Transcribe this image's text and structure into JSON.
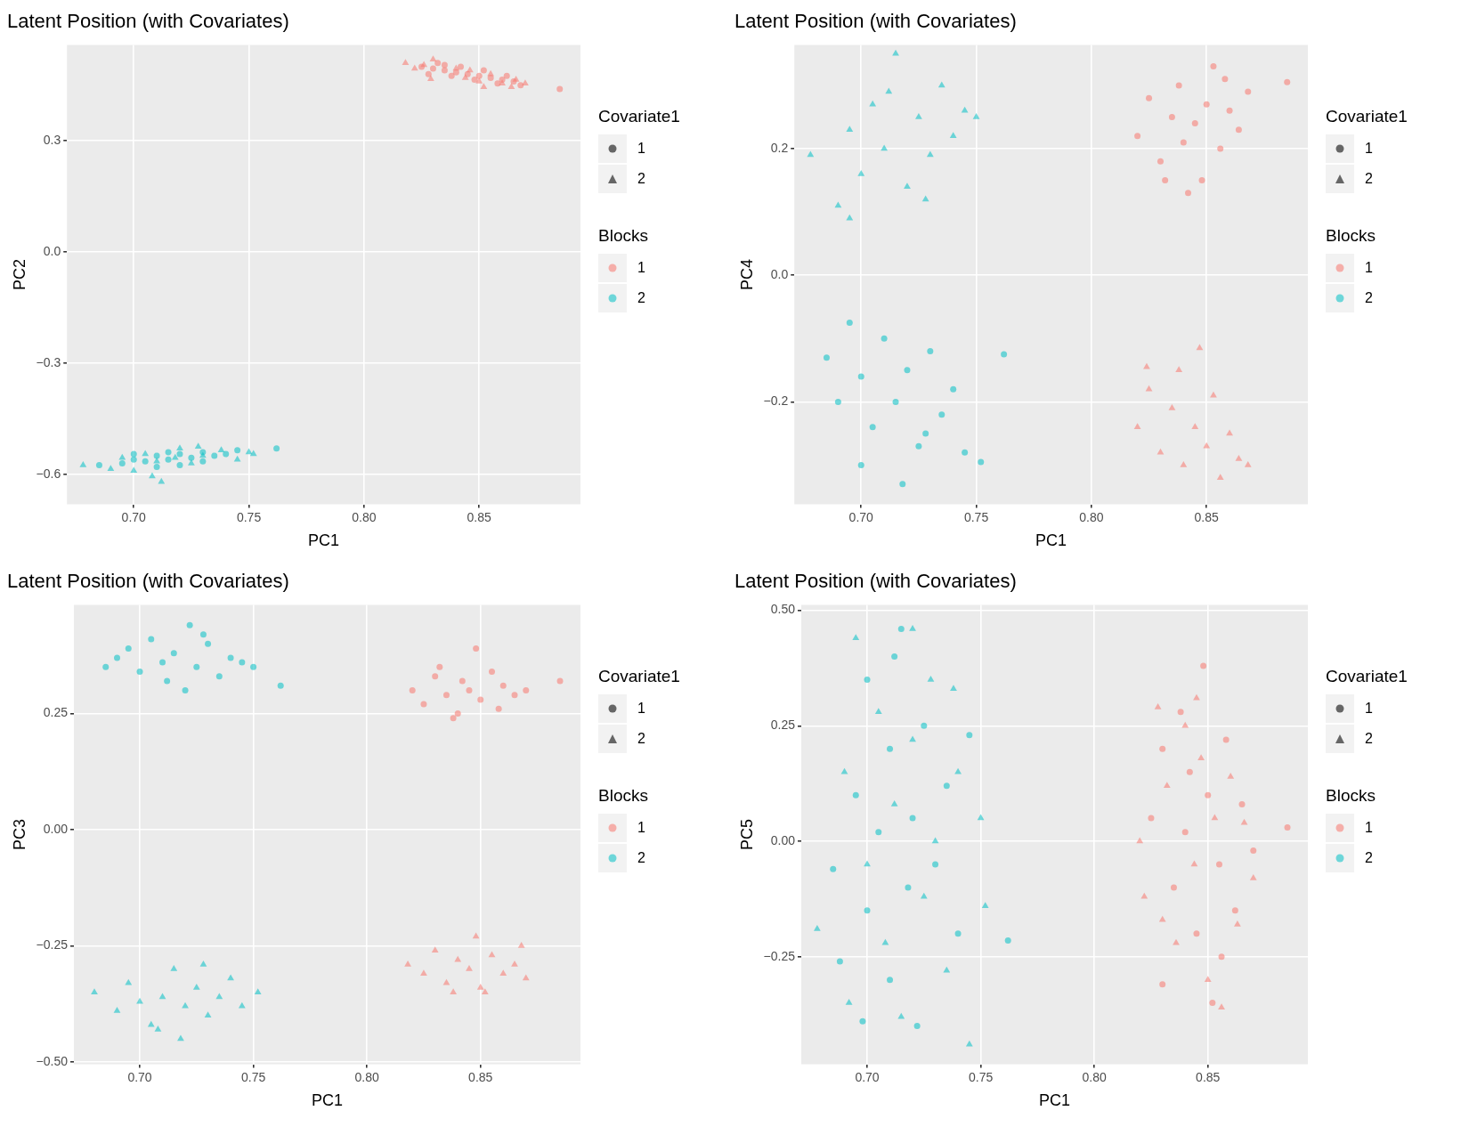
{
  "chart_data": [
    {
      "type": "scatter",
      "title": "Latent Position (with Covariates)",
      "xlabel": "PC1",
      "ylabel": "PC2",
      "xlim": [
        0.671,
        0.894
      ],
      "ylim": [
        -0.681,
        0.559
      ],
      "xticks": [
        {
          "value": 0.7,
          "label": "0.70"
        },
        {
          "value": 0.75,
          "label": "0.75"
        },
        {
          "value": 0.8,
          "label": "0.80"
        },
        {
          "value": 0.85,
          "label": "0.85"
        }
      ],
      "yticks": [
        {
          "value": -0.6,
          "label": "−0.6"
        },
        {
          "value": -0.3,
          "label": "−0.3"
        },
        {
          "value": 0,
          "label": "0.0"
        },
        {
          "value": 0.3,
          "label": "0.3"
        }
      ],
      "grid": true,
      "legend": "right",
      "legend_title": "Blocks",
      "annotations": [
        "Covariate1",
        "1",
        "2"
      ],
      "series": [
        {
          "name": "1",
          "color": "#f8766d",
          "marker": "circle",
          "x": [
            0.825,
            0.83,
            0.835,
            0.84,
            0.845,
            0.85,
            0.855,
            0.86,
            0.865,
            0.885,
            0.832,
            0.838,
            0.842,
            0.848,
            0.852,
            0.858,
            0.862,
            0.828,
            0.868,
            0.835
          ],
          "values": [
            0.5,
            0.495,
            0.49,
            0.485,
            0.48,
            0.475,
            0.47,
            0.465,
            0.46,
            0.44,
            0.51,
            0.475,
            0.5,
            0.465,
            0.49,
            0.455,
            0.475,
            0.48,
            0.45,
            0.505
          ]
        },
        {
          "name": "2",
          "color": "#00bfc4",
          "marker": "circle",
          "x": [
            0.685,
            0.695,
            0.7,
            0.705,
            0.71,
            0.715,
            0.72,
            0.725,
            0.73,
            0.735,
            0.74,
            0.745,
            0.762,
            0.71,
            0.72,
            0.7,
            0.73,
            0.715
          ],
          "values": [
            -0.575,
            -0.57,
            -0.56,
            -0.565,
            -0.55,
            -0.56,
            -0.545,
            -0.555,
            -0.54,
            -0.55,
            -0.545,
            -0.535,
            -0.53,
            -0.58,
            -0.575,
            -0.545,
            -0.565,
            -0.54
          ]
        },
        {
          "color": "#f8766d",
          "marker": "triangle",
          "x": [
            0.818,
            0.822,
            0.83,
            0.829,
            0.84,
            0.846,
            0.85,
            0.855,
            0.86,
            0.866,
            0.87,
            0.844,
            0.826,
            0.852,
            0.864
          ],
          "values": [
            0.51,
            0.495,
            0.52,
            0.467,
            0.495,
            0.49,
            0.46,
            0.48,
            0.455,
            0.465,
            0.455,
            0.47,
            0.505,
            0.445,
            0.445
          ]
        },
        {
          "color": "#00bfc4",
          "marker": "triangle",
          "x": [
            0.678,
            0.69,
            0.695,
            0.7,
            0.705,
            0.71,
            0.712,
            0.718,
            0.72,
            0.725,
            0.73,
            0.738,
            0.745,
            0.75,
            0.752,
            0.708,
            0.728
          ],
          "values": [
            -0.575,
            -0.585,
            -0.555,
            -0.59,
            -0.545,
            -0.565,
            -0.62,
            -0.555,
            -0.53,
            -0.57,
            -0.55,
            -0.535,
            -0.56,
            -0.54,
            -0.545,
            -0.605,
            -0.525
          ]
        }
      ]
    },
    {
      "type": "scatter",
      "title": "Latent Position (with Covariates)",
      "xlabel": "PC1",
      "ylabel": "PC4",
      "xlim": [
        0.671,
        0.894
      ],
      "ylim": [
        -0.362,
        0.364
      ],
      "xticks": [
        {
          "value": 0.7,
          "label": "0.70"
        },
        {
          "value": 0.75,
          "label": "0.75"
        },
        {
          "value": 0.8,
          "label": "0.80"
        },
        {
          "value": 0.85,
          "label": "0.85"
        }
      ],
      "yticks": [
        {
          "value": -0.2,
          "label": "−0.2"
        },
        {
          "value": 0,
          "label": "0.0"
        },
        {
          "value": 0.2,
          "label": "0.2"
        }
      ],
      "grid": true,
      "legend": "right",
      "legend_title": "Blocks",
      "annotations": [
        "Covariate1",
        "1",
        "2"
      ],
      "series": [
        {
          "name": "1",
          "color": "#f8766d",
          "marker": "circle",
          "x": [
            0.82,
            0.825,
            0.83,
            0.835,
            0.838,
            0.84,
            0.845,
            0.848,
            0.85,
            0.853,
            0.856,
            0.86,
            0.864,
            0.868,
            0.842,
            0.885,
            0.832,
            0.858
          ],
          "values": [
            0.22,
            0.28,
            0.18,
            0.25,
            0.3,
            0.21,
            0.24,
            0.15,
            0.27,
            0.33,
            0.2,
            0.26,
            0.23,
            0.29,
            0.13,
            0.305,
            0.15,
            0.31
          ]
        },
        {
          "name": "2",
          "color": "#00bfc4",
          "marker": "circle",
          "x": [
            0.685,
            0.69,
            0.695,
            0.7,
            0.705,
            0.71,
            0.715,
            0.718,
            0.72,
            0.725,
            0.73,
            0.735,
            0.74,
            0.745,
            0.752,
            0.762,
            0.7,
            0.728
          ],
          "values": [
            -0.13,
            -0.2,
            -0.075,
            -0.16,
            -0.24,
            -0.1,
            -0.2,
            -0.33,
            -0.15,
            -0.27,
            -0.12,
            -0.22,
            -0.18,
            -0.28,
            -0.295,
            -0.125,
            -0.3,
            -0.25
          ]
        },
        {
          "color": "#f8766d",
          "marker": "triangle",
          "x": [
            0.82,
            0.825,
            0.83,
            0.835,
            0.84,
            0.845,
            0.847,
            0.85,
            0.853,
            0.856,
            0.86,
            0.864,
            0.868,
            0.838,
            0.824
          ],
          "values": [
            -0.24,
            -0.18,
            -0.28,
            -0.21,
            -0.3,
            -0.24,
            -0.115,
            -0.27,
            -0.19,
            -0.32,
            -0.25,
            -0.29,
            -0.3,
            -0.15,
            -0.145
          ]
        },
        {
          "color": "#00bfc4",
          "marker": "triangle",
          "x": [
            0.678,
            0.69,
            0.695,
            0.7,
            0.705,
            0.71,
            0.715,
            0.72,
            0.725,
            0.73,
            0.735,
            0.74,
            0.745,
            0.75,
            0.695,
            0.728,
            0.712
          ],
          "values": [
            0.19,
            0.11,
            0.23,
            0.16,
            0.27,
            0.2,
            0.35,
            0.14,
            0.25,
            0.19,
            0.3,
            0.22,
            0.26,
            0.25,
            0.09,
            0.12,
            0.29
          ]
        }
      ]
    },
    {
      "type": "scatter",
      "title": "Latent Position (with Covariates)",
      "xlabel": "PC1",
      "ylabel": "PC3",
      "xlim": [
        0.671,
        0.894
      ],
      "ylim": [
        -0.505,
        0.484
      ],
      "xticks": [
        {
          "value": 0.7,
          "label": "0.70"
        },
        {
          "value": 0.75,
          "label": "0.75"
        },
        {
          "value": 0.8,
          "label": "0.80"
        },
        {
          "value": 0.85,
          "label": "0.85"
        }
      ],
      "yticks": [
        {
          "value": -0.5,
          "label": "−0.50"
        },
        {
          "value": -0.25,
          "label": "−0.25"
        },
        {
          "value": 0,
          "label": "0.00"
        },
        {
          "value": 0.25,
          "label": "0.25"
        }
      ],
      "grid": true,
      "legend": "right",
      "legend_title": "Blocks",
      "annotations": [
        "Covariate1",
        "1",
        "2"
      ],
      "series": [
        {
          "name": "1",
          "color": "#f8766d",
          "marker": "circle",
          "x": [
            0.82,
            0.825,
            0.83,
            0.835,
            0.84,
            0.842,
            0.845,
            0.848,
            0.85,
            0.855,
            0.86,
            0.865,
            0.87,
            0.885,
            0.838,
            0.858,
            0.832
          ],
          "values": [
            0.3,
            0.27,
            0.33,
            0.29,
            0.25,
            0.32,
            0.3,
            0.39,
            0.28,
            0.34,
            0.31,
            0.29,
            0.3,
            0.32,
            0.24,
            0.26,
            0.35
          ]
        },
        {
          "name": "2",
          "color": "#00bfc4",
          "marker": "circle",
          "x": [
            0.685,
            0.69,
            0.695,
            0.7,
            0.705,
            0.71,
            0.715,
            0.72,
            0.722,
            0.725,
            0.73,
            0.735,
            0.74,
            0.745,
            0.75,
            0.762,
            0.712,
            0.728
          ],
          "values": [
            0.35,
            0.37,
            0.39,
            0.34,
            0.41,
            0.36,
            0.38,
            0.3,
            0.44,
            0.35,
            0.4,
            0.33,
            0.37,
            0.36,
            0.35,
            0.31,
            0.32,
            0.42
          ]
        },
        {
          "color": "#f8766d",
          "marker": "triangle",
          "x": [
            0.818,
            0.825,
            0.83,
            0.835,
            0.84,
            0.845,
            0.848,
            0.85,
            0.855,
            0.86,
            0.865,
            0.868,
            0.87,
            0.838,
            0.852
          ],
          "values": [
            -0.29,
            -0.31,
            -0.26,
            -0.33,
            -0.28,
            -0.3,
            -0.23,
            -0.34,
            -0.27,
            -0.31,
            -0.29,
            -0.25,
            -0.32,
            -0.35,
            -0.35
          ]
        },
        {
          "color": "#00bfc4",
          "marker": "triangle",
          "x": [
            0.68,
            0.69,
            0.695,
            0.7,
            0.705,
            0.71,
            0.715,
            0.718,
            0.72,
            0.725,
            0.73,
            0.735,
            0.74,
            0.745,
            0.752,
            0.708,
            0.728
          ],
          "values": [
            -0.35,
            -0.39,
            -0.33,
            -0.37,
            -0.42,
            -0.36,
            -0.3,
            -0.45,
            -0.38,
            -0.34,
            -0.4,
            -0.36,
            -0.32,
            -0.38,
            -0.35,
            -0.43,
            -0.29
          ]
        }
      ]
    },
    {
      "type": "scatter",
      "title": "Latent Position (with Covariates)",
      "xlabel": "PC1",
      "ylabel": "PC5",
      "xlim": [
        0.671,
        0.894
      ],
      "ylim": [
        -0.483,
        0.512
      ],
      "xticks": [
        {
          "value": 0.7,
          "label": "0.70"
        },
        {
          "value": 0.75,
          "label": "0.75"
        },
        {
          "value": 0.8,
          "label": "0.80"
        },
        {
          "value": 0.85,
          "label": "0.85"
        }
      ],
      "yticks": [
        {
          "value": -0.25,
          "label": "−0.25"
        },
        {
          "value": 0,
          "label": "0.00"
        },
        {
          "value": 0.25,
          "label": "0.25"
        },
        {
          "value": 0.5,
          "label": "0.50"
        }
      ],
      "grid": true,
      "legend": "right",
      "legend_title": "Blocks",
      "annotations": [
        "Covariate1",
        "1",
        "2"
      ],
      "series": [
        {
          "name": "1",
          "color": "#f8766d",
          "marker": "circle",
          "x": [
            0.825,
            0.83,
            0.83,
            0.835,
            0.838,
            0.84,
            0.845,
            0.848,
            0.85,
            0.852,
            0.855,
            0.858,
            0.862,
            0.865,
            0.87,
            0.885,
            0.842,
            0.856
          ],
          "values": [
            0.05,
            -0.31,
            0.2,
            -0.1,
            0.28,
            0.02,
            -0.2,
            0.38,
            0.1,
            -0.35,
            -0.05,
            0.22,
            -0.15,
            0.08,
            -0.02,
            0.03,
            0.15,
            -0.25
          ]
        },
        {
          "name": "2",
          "color": "#00bfc4",
          "marker": "circle",
          "x": [
            0.685,
            0.688,
            0.695,
            0.7,
            0.7,
            0.705,
            0.71,
            0.71,
            0.715,
            0.718,
            0.72,
            0.722,
            0.725,
            0.73,
            0.735,
            0.74,
            0.745,
            0.762,
            0.712,
            0.698
          ],
          "values": [
            -0.06,
            -0.26,
            0.1,
            -0.15,
            0.35,
            0.02,
            -0.3,
            0.2,
            0.46,
            -0.1,
            0.05,
            -0.4,
            0.25,
            -0.05,
            0.12,
            -0.2,
            0.23,
            -0.215,
            0.4,
            -0.39
          ]
        },
        {
          "color": "#f8766d",
          "marker": "triangle",
          "x": [
            0.82,
            0.822,
            0.828,
            0.832,
            0.836,
            0.84,
            0.844,
            0.847,
            0.85,
            0.853,
            0.856,
            0.86,
            0.863,
            0.866,
            0.87,
            0.845,
            0.83
          ],
          "values": [
            0,
            -0.12,
            0.29,
            0.12,
            -0.22,
            0.25,
            -0.05,
            0.18,
            -0.3,
            0.05,
            -0.36,
            0.14,
            -0.18,
            0.04,
            -0.08,
            0.31,
            -0.17
          ]
        },
        {
          "color": "#00bfc4",
          "marker": "triangle",
          "x": [
            0.678,
            0.69,
            0.692,
            0.695,
            0.7,
            0.705,
            0.708,
            0.712,
            0.715,
            0.72,
            0.725,
            0.728,
            0.73,
            0.735,
            0.74,
            0.745,
            0.75,
            0.752,
            0.72,
            0.738
          ],
          "values": [
            -0.19,
            0.15,
            -0.35,
            0.44,
            -0.05,
            0.28,
            -0.22,
            0.08,
            -0.38,
            0.22,
            -0.12,
            0.35,
            0,
            -0.28,
            0.15,
            -0.44,
            0.05,
            -0.14,
            0.46,
            0.33
          ]
        }
      ]
    }
  ]
}
